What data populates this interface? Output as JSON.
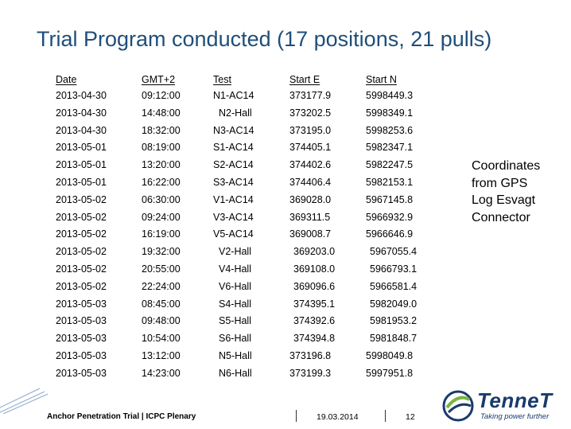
{
  "title": "Trial Program conducted (17 positions, 21 pulls)",
  "table": {
    "headers": [
      "Date",
      "GMT+2",
      "Test",
      "Start E",
      "Start N"
    ],
    "rows": [
      [
        "2013-04-30",
        "09:12:00",
        "N1-AC14",
        "373177.9",
        "5998449.3"
      ],
      [
        "2013-04-30",
        "14:48:00",
        "N2-Hall",
        "373202.5",
        "5998349.1"
      ],
      [
        "2013-04-30",
        "18:32:00",
        "N3-AC14",
        "373195.0",
        "5998253.6"
      ],
      [
        "2013-05-01",
        "08:19:00",
        "S1-AC14",
        "374405.1",
        "5982347.1"
      ],
      [
        "2013-05-01",
        "13:20:00",
        "S2-AC14",
        "374402.6",
        "5982247.5"
      ],
      [
        "2013-05-01",
        "16:22:00",
        "S3-AC14",
        "374406.4",
        "5982153.1"
      ],
      [
        "2013-05-02",
        "06:30:00",
        "V1-AC14",
        "369028.0",
        "5967145.8"
      ],
      [
        "2013-05-02",
        "09:24:00",
        "V3-AC14",
        "369311.5",
        "5966932.9"
      ],
      [
        "2013-05-02",
        "16:19:00",
        "V5-AC14",
        "369008.7",
        "5966646.9"
      ],
      [
        "2013-05-02",
        "19:32:00",
        "V2-Hall",
        "369203.0",
        "5967055.4"
      ],
      [
        "2013-05-02",
        "20:55:00",
        "V4-Hall",
        "369108.0",
        "5966793.1"
      ],
      [
        "2013-05-02",
        "22:24:00",
        "V6-Hall",
        "369096.6",
        "5966581.4"
      ],
      [
        "2013-05-03",
        "08:45:00",
        "S4-Hall",
        "374395.1",
        "5982049.0"
      ],
      [
        "2013-05-03",
        "09:48:00",
        "S5-Hall",
        "374392.6",
        "5981953.2"
      ],
      [
        "2013-05-03",
        "10:54:00",
        "S6-Hall",
        "374394.8",
        "5981848.7"
      ],
      [
        "2013-05-03",
        "13:12:00",
        "N5-Hall",
        "373196.8",
        "5998049.8"
      ],
      [
        "2013-05-03",
        "14:23:00",
        "N6-Hall",
        "373199.3",
        "5997951.8"
      ]
    ]
  },
  "note_lines": [
    "Coordinates",
    "from GPS",
    "Log Esvagt",
    "Connector"
  ],
  "footer": {
    "left": "Anchor Penetration Trial | ICPC Plenary",
    "date": "19.03.2014",
    "page": "12"
  },
  "logo": {
    "word": "TenneT",
    "tagline": "Taking power further"
  },
  "colors": {
    "title": "#1f4e79",
    "brand": "#1a3a6b",
    "accent": "#7cb342"
  }
}
